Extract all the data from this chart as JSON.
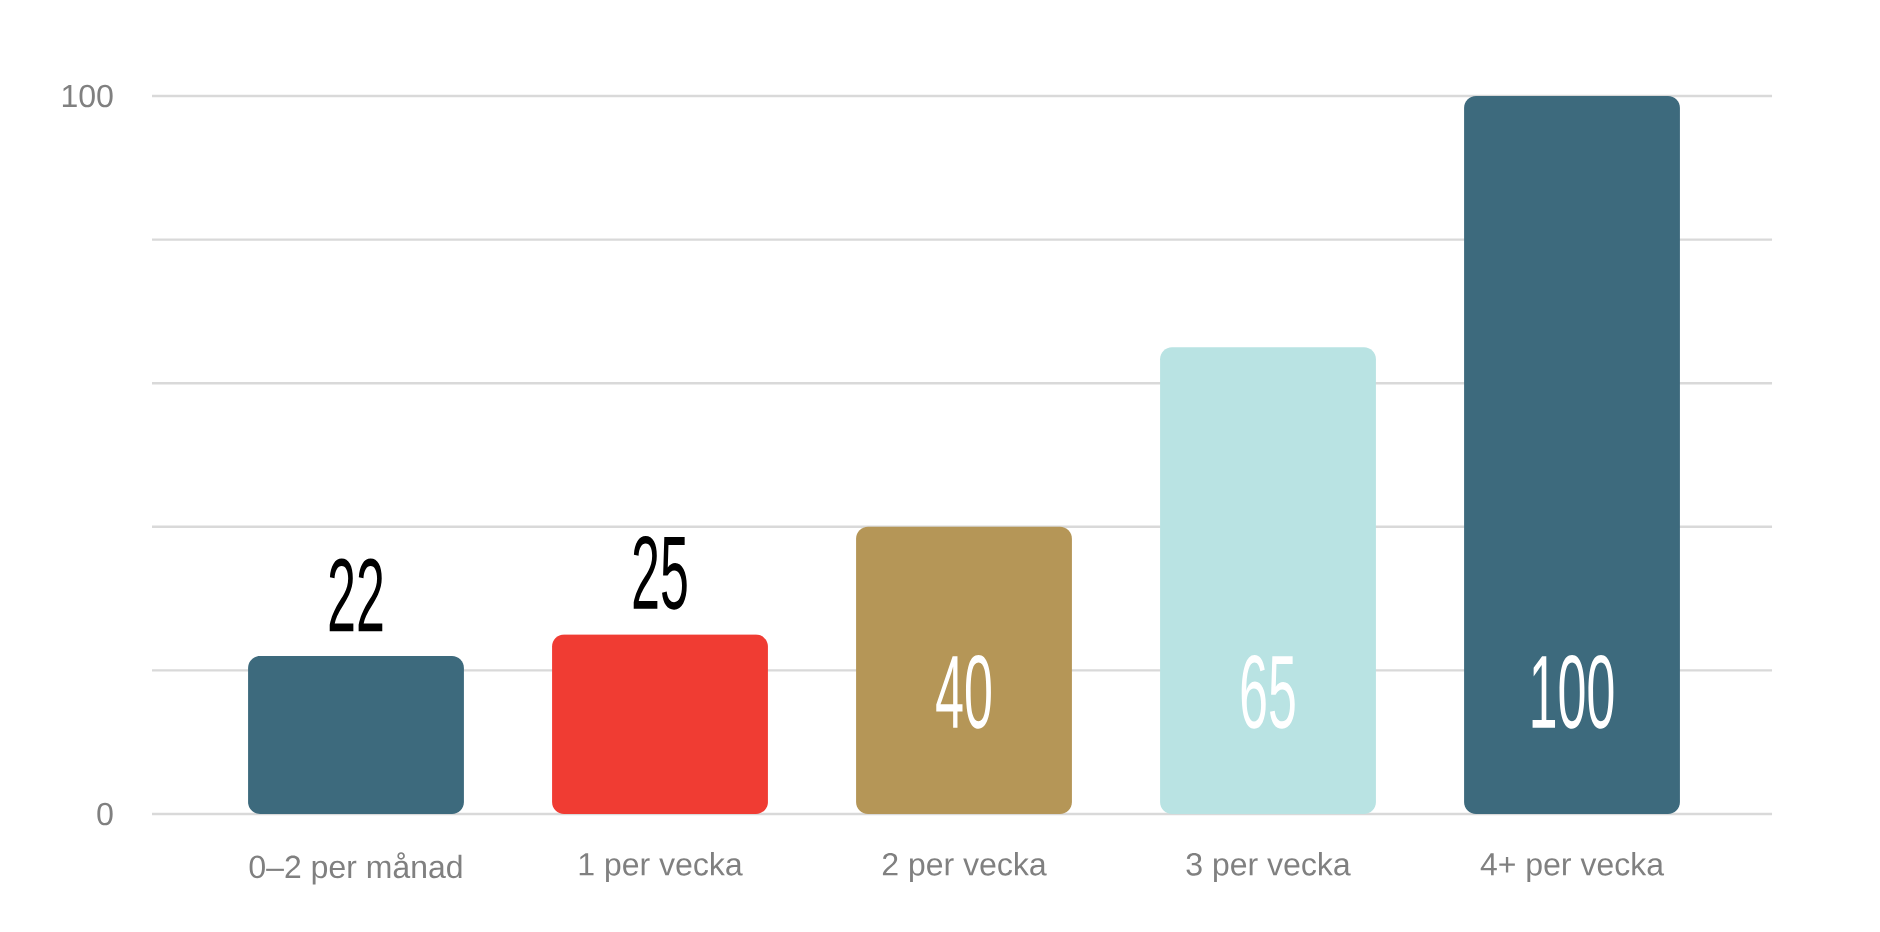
{
  "chart_data": {
    "type": "bar",
    "categories": [
      "0–2 per månad",
      "1 per vecka",
      "2 per vecka",
      "3 per vecka",
      "4+ per vecka"
    ],
    "values": [
      22,
      25,
      40,
      65,
      100
    ],
    "colors": [
      "#3d6a7d",
      "#f03c33",
      "#b59657",
      "#b9e3e3",
      "#3d6a7d"
    ],
    "ylim": [
      0,
      100
    ],
    "yticks": [
      0,
      {
        "value": 20,
        "label": null
      },
      {
        "value": 40,
        "label": null
      },
      {
        "value": 60,
        "label": null
      },
      {
        "value": 80,
        "label": null
      },
      100
    ],
    "grid": "y",
    "data_labels": true
  }
}
